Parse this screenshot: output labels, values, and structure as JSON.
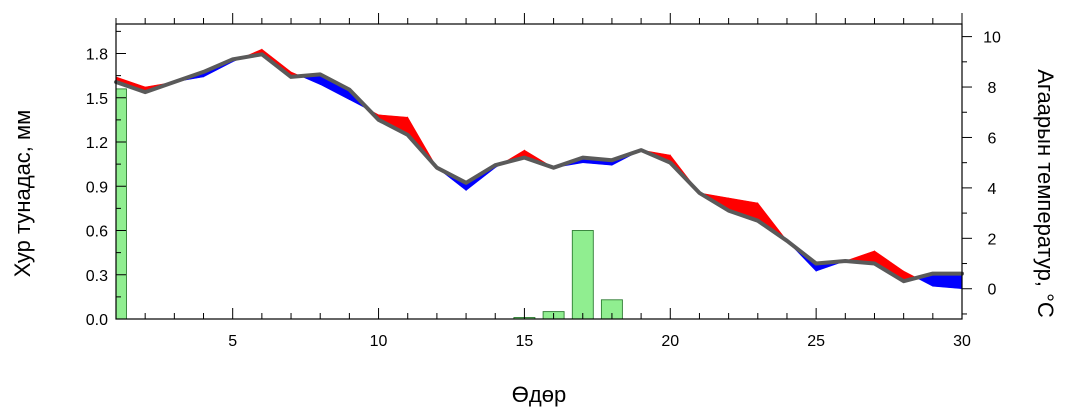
{
  "chart_data": {
    "type": "bar+line",
    "xlabel": "Өдөр",
    "ylabel_left": "Хур тунадас, мм",
    "ylabel_right": "Агаарын температур, °С",
    "xlim": [
      1,
      30
    ],
    "ylim_left": [
      0,
      2.0
    ],
    "ylim_right": [
      -1.2,
      10.5
    ],
    "x_ticks": [
      5,
      10,
      15,
      20,
      25,
      30
    ],
    "y_left_ticks": [
      "0.0",
      "0.3",
      "0.6",
      "0.9",
      "1.2",
      "1.5",
      "1.8"
    ],
    "y_right_ticks": [
      "0",
      "2",
      "4",
      "6",
      "8",
      "10"
    ],
    "colors": {
      "bars": "#90ee90",
      "bar_edge": "#2e7d32",
      "line": "#5a5a5a",
      "warm_fill": "#ff0000",
      "cold_fill": "#0000ff"
    },
    "precipitation": {
      "name": "Хур тунадас",
      "x": [
        1,
        15,
        16,
        17,
        18
      ],
      "values": [
        1.56,
        0.01,
        0.05,
        0.6,
        0.13
      ]
    },
    "temperature": {
      "name": "Агаарын температур",
      "x": [
        1,
        2,
        3,
        4,
        5,
        6,
        7,
        8,
        9,
        10,
        11,
        12,
        13,
        14,
        15,
        16,
        17,
        18,
        19,
        20,
        21,
        22,
        23,
        24,
        25,
        26,
        27,
        28,
        29,
        30
      ],
      "values": [
        8.2,
        7.8,
        8.2,
        8.6,
        9.1,
        9.3,
        8.4,
        8.5,
        7.9,
        6.7,
        6.1,
        4.8,
        4.2,
        4.9,
        5.2,
        4.8,
        5.2,
        5.1,
        5.5,
        5.0,
        3.8,
        3.1,
        2.7,
        1.9,
        1.0,
        1.1,
        1.0,
        0.3,
        0.6,
        0.6
      ]
    },
    "reference": {
      "x": [
        1,
        2,
        3,
        4,
        5,
        6,
        7,
        8,
        9,
        10,
        11,
        12,
        13,
        14,
        15,
        16,
        17,
        18,
        19,
        20,
        21,
        22,
        23,
        24,
        25,
        26,
        27,
        28,
        29,
        30
      ],
      "values": [
        8.4,
        8.0,
        8.2,
        8.4,
        9.0,
        9.5,
        8.6,
        8.1,
        7.5,
        6.9,
        6.8,
        4.8,
        3.9,
        4.8,
        5.5,
        4.8,
        5.0,
        4.9,
        5.5,
        5.3,
        3.8,
        3.6,
        3.4,
        1.9,
        0.7,
        1.1,
        1.5,
        0.7,
        0.1,
        0.0
      ]
    }
  }
}
